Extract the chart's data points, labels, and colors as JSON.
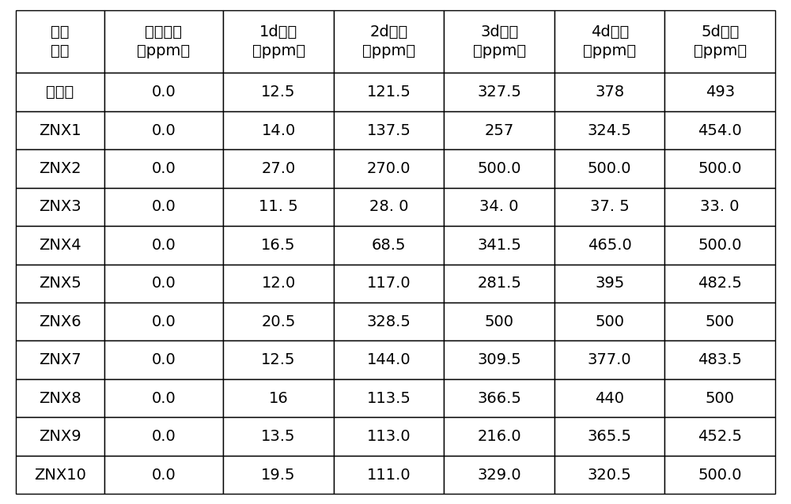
{
  "headers": [
    "菌株\n编号",
    "初始浓度\n（ppm）",
    "1d浓度\n（ppm）",
    "2d浓度\n（ppm）",
    "3d浓度\n（ppm）",
    "4d浓度\n（ppm）",
    "5d浓度\n（ppm）"
  ],
  "rows": [
    [
      "对照组",
      "0.0",
      "12.5",
      "121.5",
      "327.5",
      "378",
      "493"
    ],
    [
      "ZNX1",
      "0.0",
      "14.0",
      "137.5",
      "257",
      "324.5",
      "454.0"
    ],
    [
      "ZNX2",
      "0.0",
      "27.0",
      "270.0",
      "500.0",
      "500.0",
      "500.0"
    ],
    [
      "ZNX3",
      "0.0",
      "11. 5",
      "28. 0",
      "34. 0",
      "37. 5",
      "33. 0"
    ],
    [
      "ZNX4",
      "0.0",
      "16.5",
      "68.5",
      "341.5",
      "465.0",
      "500.0"
    ],
    [
      "ZNX5",
      "0.0",
      "12.0",
      "117.0",
      "281.5",
      "395",
      "482.5"
    ],
    [
      "ZNX6",
      "0.0",
      "20.5",
      "328.5",
      "500",
      "500",
      "500"
    ],
    [
      "ZNX7",
      "0.0",
      "12.5",
      "144.0",
      "309.5",
      "377.0",
      "483.5"
    ],
    [
      "ZNX8",
      "0.0",
      "16",
      "113.5",
      "366.5",
      "440",
      "500"
    ],
    [
      "ZNX9",
      "0.0",
      "13.5",
      "113.0",
      "216.0",
      "365.5",
      "452.5"
    ],
    [
      "ZNX10",
      "0.0",
      "19.5",
      "111.0",
      "329.0",
      "320.5",
      "500.0"
    ]
  ],
  "col_widths_ratio": [
    1.0,
    1.35,
    1.25,
    1.25,
    1.25,
    1.25,
    1.25
  ],
  "background_color": "#ffffff",
  "border_color": "#000000",
  "text_color": "#000000",
  "header_fontsize": 14,
  "cell_fontsize": 14,
  "figsize": [
    10.0,
    6.38
  ],
  "dpi": 100
}
